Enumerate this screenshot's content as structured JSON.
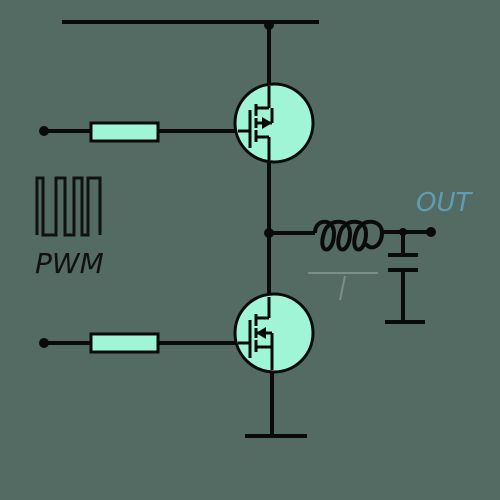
{
  "labels": {
    "pwm": "PWM",
    "out": "OUT"
  },
  "colors": {
    "background": "#536b62",
    "wire": "#0a0a0a",
    "component_fill": "#9ff5d6",
    "out_label": "#5f9db2",
    "faint_line": "#7d8d87"
  },
  "components": {
    "upper_resistor": "resistor",
    "lower_resistor": "resistor",
    "high_side_transistor": "mosfet",
    "low_side_transistor": "mosfet",
    "inductor": "inductor",
    "capacitor": "capacitor",
    "ground": "ground",
    "supply_rail": "supply-rail",
    "pwm_waveform": "square-wave-icon"
  }
}
